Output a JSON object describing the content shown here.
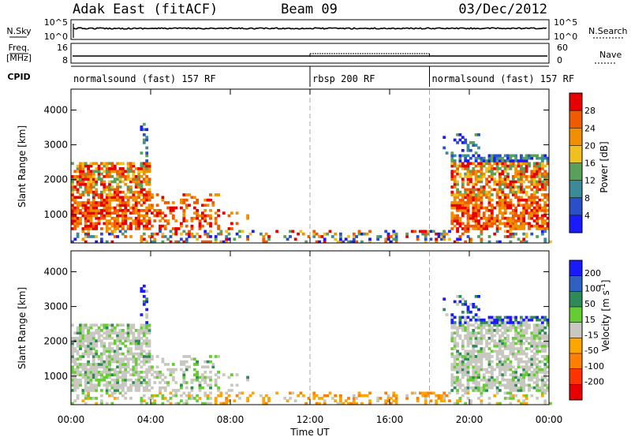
{
  "header": {
    "station": "Adak East (fitACF)",
    "beam": "Beam 09",
    "date": "03/Dec/2012"
  },
  "nsky_panel": {
    "left_label": "N.Sky",
    "right_label": "N.Search",
    "left_ticks": [
      "10^5",
      "10^0"
    ],
    "right_ticks": [
      "10^5",
      "10^0"
    ]
  },
  "freq_panel": {
    "left_label_1": "Freq.",
    "left_label_2": "[MHz]",
    "right_label": "Nave",
    "left_ticks": [
      "16",
      "8"
    ],
    "right_ticks": [
      "60",
      "0"
    ]
  },
  "cpid": {
    "label": "CPID",
    "segments": [
      {
        "name": "normalsound (fast) 157 RF",
        "start_h": 0,
        "end_h": 12
      },
      {
        "name": "rbsp 200 RF",
        "start_h": 12,
        "end_h": 18
      },
      {
        "name": "normalsound (fast) 157 RF",
        "start_h": 18,
        "end_h": 24
      }
    ]
  },
  "chart_data": [
    {
      "type": "heatmap",
      "title": "",
      "xlabel": "Time UT",
      "ylabel": "Slant Range [km]",
      "xlim": [
        0,
        24
      ],
      "ylim": [
        180,
        4600
      ],
      "x_ticks": [
        "00:00",
        "04:00",
        "08:00",
        "12:00",
        "16:00",
        "20:00",
        "00:00"
      ],
      "y_ticks": [
        1000,
        2000,
        3000,
        4000
      ],
      "vertical_markers_h": [
        12,
        18
      ],
      "colorbar": {
        "label": "Power [dB]",
        "levels": [
          4,
          8,
          12,
          16,
          20,
          24,
          28
        ],
        "colors": [
          "#1a1aff",
          "#2a4fc8",
          "#3a8a9a",
          "#5aa05a",
          "#f0c020",
          "#f09000",
          "#f05a00",
          "#e80000"
        ]
      }
    },
    {
      "type": "heatmap",
      "title": "",
      "xlabel": "Time UT",
      "ylabel": "Slant Range [km]",
      "xlim": [
        0,
        24
      ],
      "ylim": [
        180,
        4600
      ],
      "x_ticks": [
        "00:00",
        "04:00",
        "08:00",
        "12:00",
        "16:00",
        "20:00",
        "00:00"
      ],
      "y_ticks": [
        1000,
        2000,
        3000,
        4000
      ],
      "vertical_markers_h": [
        12,
        18
      ],
      "colorbar": {
        "label": "Velocity [m s^-1]",
        "levels": [
          200,
          100,
          50,
          15,
          -15,
          -50,
          -100,
          -200
        ],
        "colors": [
          "#1a1aff",
          "#3060c0",
          "#2e8b57",
          "#66cc33",
          "#c8c8c0",
          "#ffa500",
          "#ff8000",
          "#ff3300",
          "#e80000"
        ]
      }
    }
  ]
}
